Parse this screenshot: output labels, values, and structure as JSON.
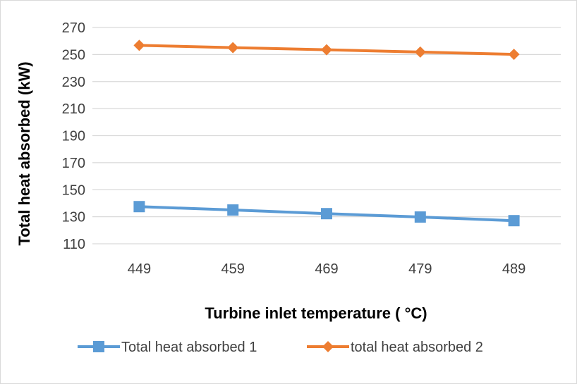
{
  "chart_data": {
    "type": "line",
    "title": "",
    "xlabel": "Turbine inlet temperature ( °C)",
    "ylabel": "Total heat absorbed (kW)",
    "categories": [
      "449",
      "459",
      "469",
      "479",
      "489"
    ],
    "ylim": [
      110,
      270
    ],
    "yticks": [
      110,
      130,
      150,
      170,
      190,
      210,
      230,
      250,
      270
    ],
    "grid": "horizontal",
    "legend_position": "bottom",
    "series": [
      {
        "name": "Total heat absorbed 1",
        "values": [
          137.5,
          135,
          132.3,
          129.8,
          127.1
        ],
        "color": "#5b9bd5",
        "marker": "square"
      },
      {
        "name": "total heat absorbed 2",
        "values": [
          256.8,
          255.1,
          253.5,
          251.8,
          250.1
        ],
        "color": "#ed7d31",
        "marker": "diamond"
      }
    ]
  }
}
